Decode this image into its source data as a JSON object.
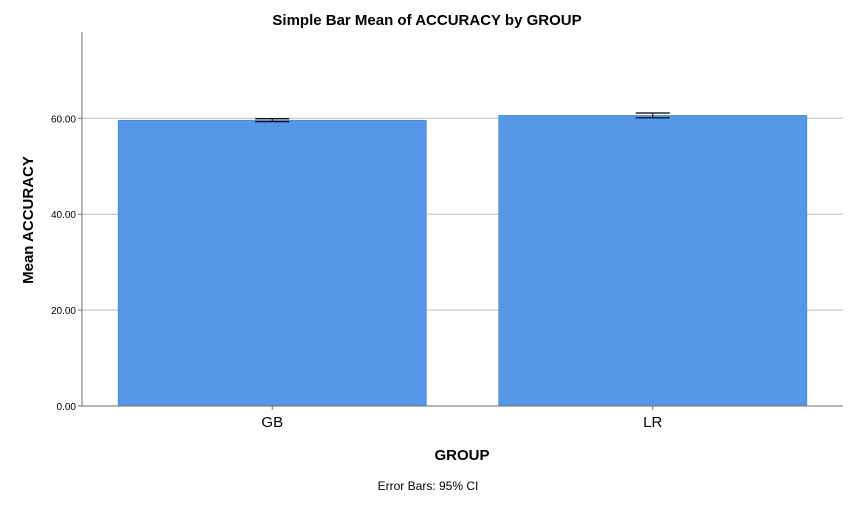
{
  "chart_data": {
    "type": "bar",
    "title": "Simple Bar Mean of ACCURACY by GROUP",
    "xlabel": "GROUP",
    "ylabel": "Mean ACCURACY",
    "categories": [
      "GB",
      "LR"
    ],
    "values": [
      59.6,
      60.6
    ],
    "error_bars": {
      "label": "Error Bars: 95% CI",
      "lower": [
        59.3,
        60.1
      ],
      "upper": [
        59.9,
        61.1
      ]
    },
    "ylim": [
      0,
      78
    ],
    "yticks": [
      0,
      20,
      40,
      60
    ],
    "ytick_labels": [
      "0.00",
      "20.00",
      "40.00",
      "60.00"
    ],
    "grid": true,
    "colors": {
      "bar": "#5596e6",
      "bar_edge": "#3f7fd0",
      "grid": "#bdbdbd",
      "axis": "#6e6e6e",
      "error": "#000000"
    }
  }
}
